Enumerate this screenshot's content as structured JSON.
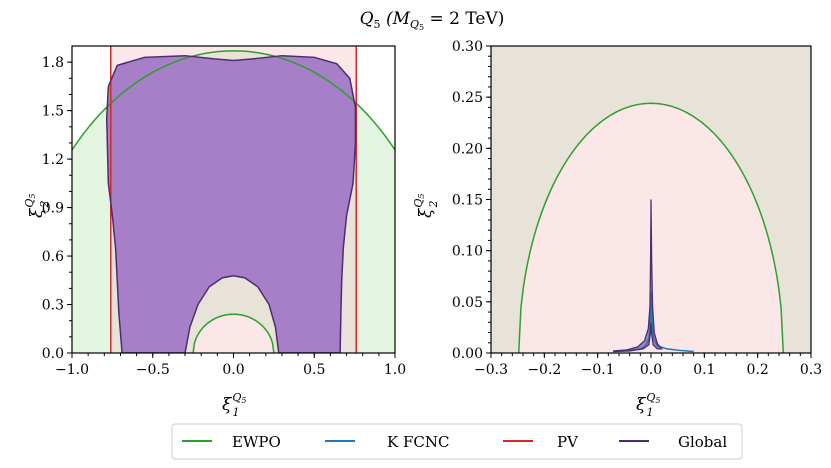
{
  "figure": {
    "title": "Q5 (MQ5 = 2 TeV)",
    "title_parts": {
      "main": "Q",
      "main_sub": "5",
      "open": " (M",
      "m_sub": "Q",
      "m_sub2": "5",
      "eq": " = 2 TeV)"
    }
  },
  "colors": {
    "EWPO": "#2ca02c",
    "K_FCNC": "#1f77b4",
    "PV": "#d62728",
    "Global": "#4b2e6b",
    "ewpo_fill": "#e4f5e1",
    "pv_fill": "#fbe6e8",
    "overlap_fill": "#e8e3d8",
    "global_fill": "#a67fc8"
  },
  "legend": {
    "placement": "bottom-center",
    "items": [
      {
        "label": "EWPO",
        "key": "EWPO"
      },
      {
        "label": "K FCNC",
        "key": "K_FCNC"
      },
      {
        "label": "PV",
        "key": "PV"
      },
      {
        "label": "Global",
        "key": "Global"
      }
    ]
  },
  "chart_data": [
    {
      "type": "line",
      "panel": "left",
      "xlabel": "ξ1^Q5",
      "ylabel": "ξ2^Q5",
      "xlim": [
        -1.0,
        1.0
      ],
      "ylim": [
        0.0,
        1.9
      ],
      "xticks": [
        "−1.0",
        "−0.5",
        "0.0",
        "0.5",
        "1.0"
      ],
      "yticks": [
        "0.0",
        "0.3",
        "0.6",
        "0.9",
        "1.2",
        "1.5",
        "1.8"
      ],
      "series": [
        {
          "name": "EWPO",
          "outer_ellipse": {
            "a": 1.35,
            "b": 1.87
          },
          "inner_ellipse": {
            "a": 0.25,
            "b": 0.24
          }
        },
        {
          "name": "PV",
          "x": [
            -0.76,
            0.76
          ]
        },
        {
          "name": "Global",
          "top_y": 1.83,
          "bottom_x": [
            -0.69,
            0.66
          ],
          "hole_x": [
            -0.3,
            0.28
          ],
          "hole_top_y": 0.48
        }
      ]
    },
    {
      "type": "line",
      "panel": "right",
      "xlabel": "ξ1^Q5",
      "ylabel": "ξ2^Q5",
      "xlim": [
        -0.3,
        0.3
      ],
      "ylim": [
        0.0,
        0.3
      ],
      "xticks": [
        "−0.3",
        "−0.2",
        "−0.1",
        "0.0",
        "0.1",
        "0.2",
        "0.3"
      ],
      "yticks": [
        "0.00",
        "0.05",
        "0.10",
        "0.15",
        "0.20",
        "0.25",
        "0.30"
      ],
      "series": [
        {
          "name": "EWPO",
          "ellipse": {
            "a": 0.248,
            "b": 0.244
          }
        },
        {
          "name": "K FCNC",
          "x_range": [
            -0.07,
            0.08
          ],
          "peak_y": 0.06
        },
        {
          "name": "Global",
          "x_range": [
            -0.07,
            0.02
          ],
          "peak_y": 0.15
        }
      ]
    }
  ]
}
